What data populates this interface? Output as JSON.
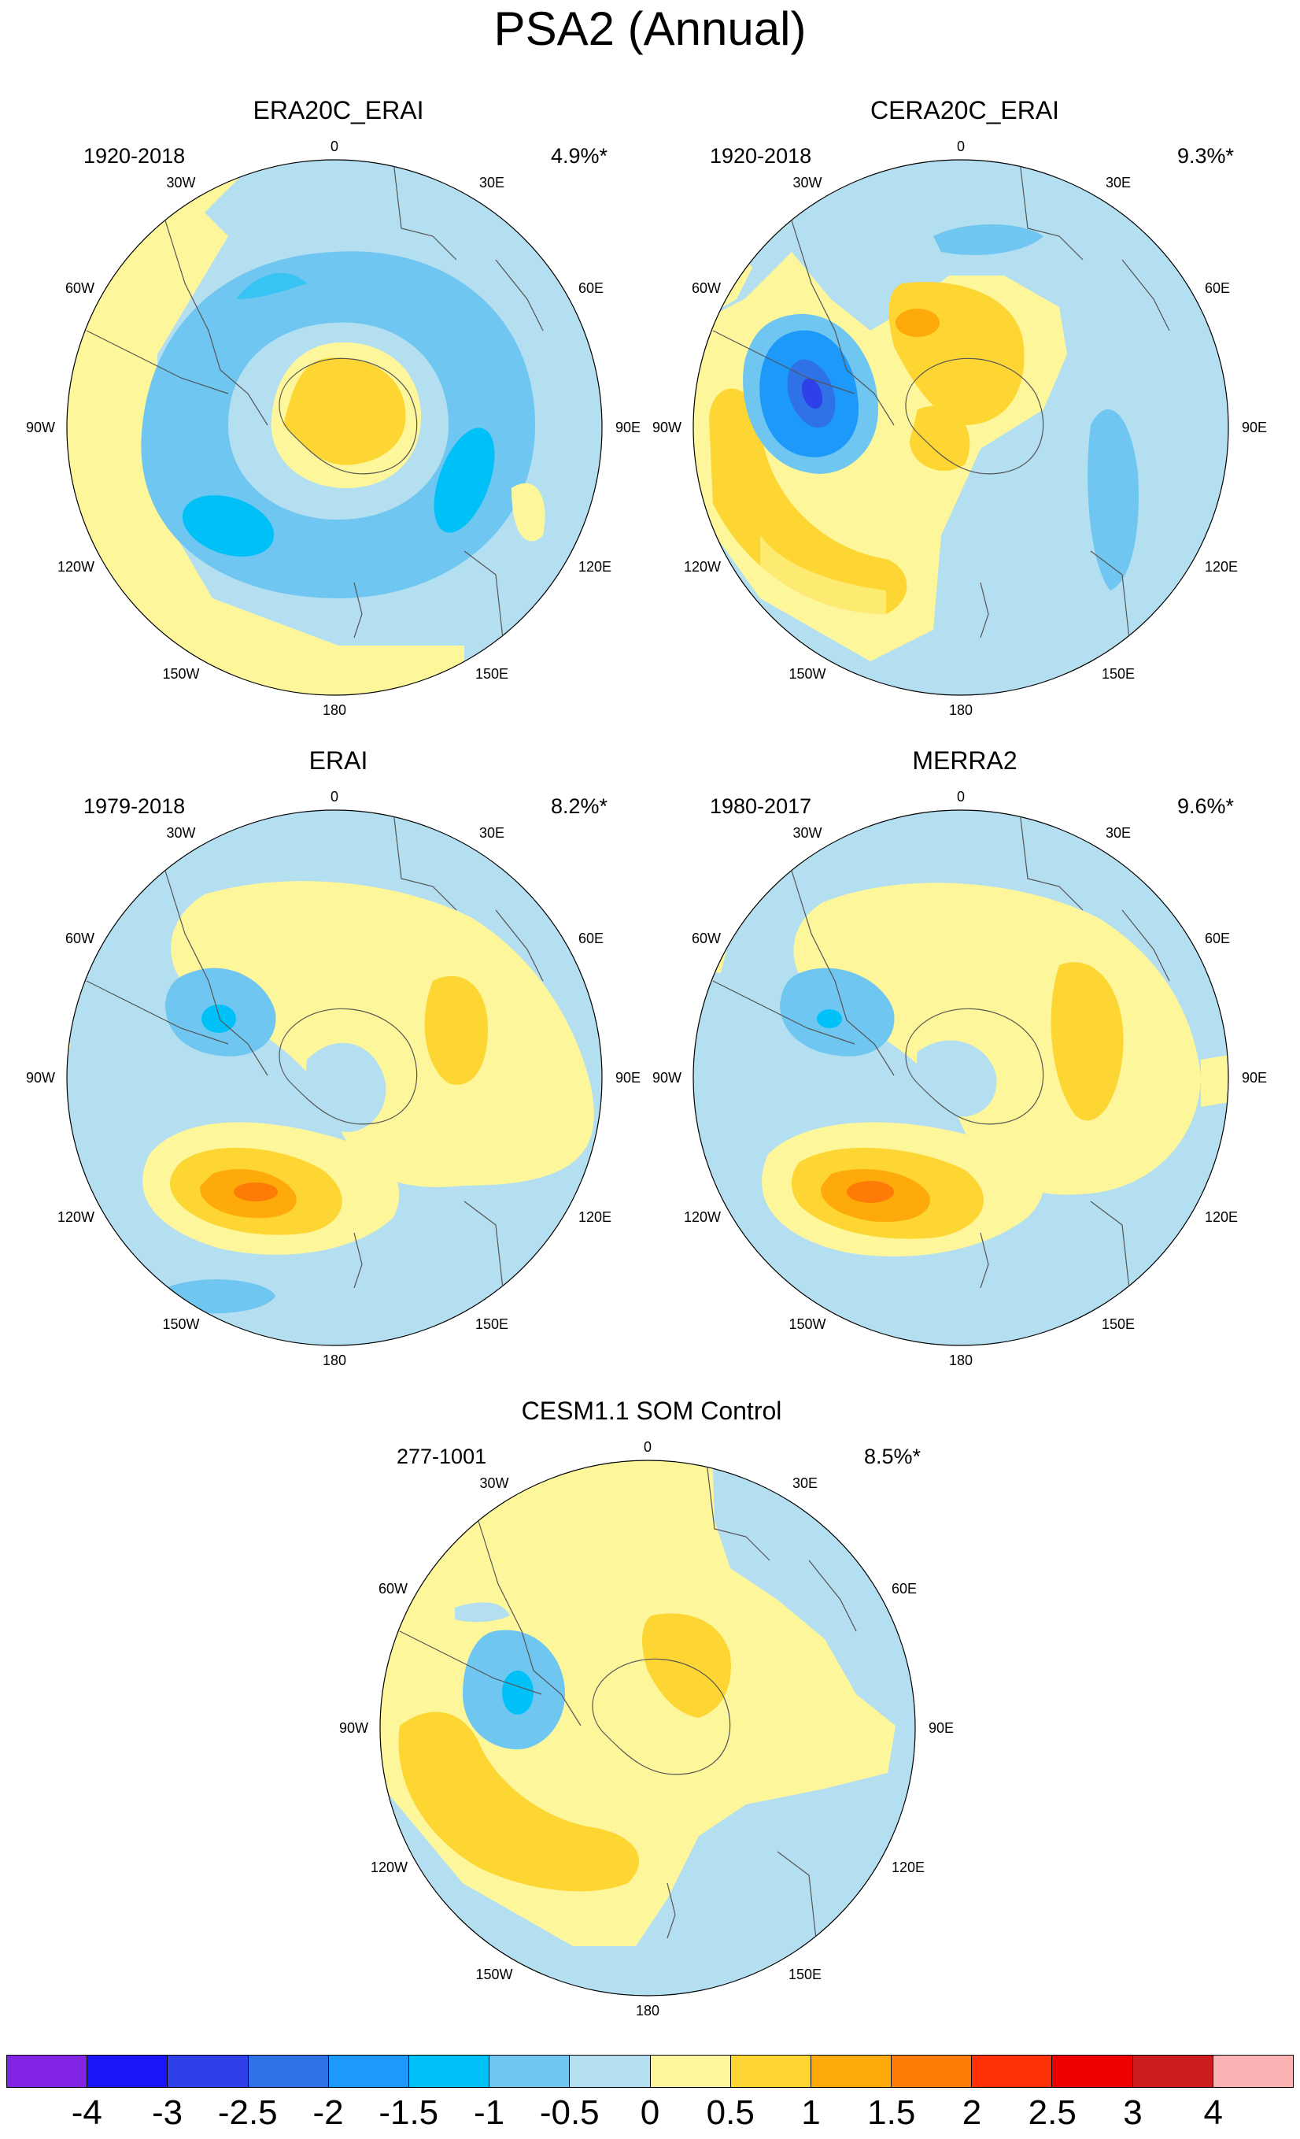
{
  "title": "PSA2 (Annual)",
  "map_labels": {
    "top": "0",
    "bottom": "180",
    "left": "90W",
    "right": "90E",
    "tl_outer": "60W",
    "tl_inner": "30W",
    "tr_inner": "30E",
    "tr_outer": "60E",
    "bl_outer": "120W",
    "bl_inner": "150W",
    "br_inner": "150E",
    "br_outer": "120E"
  },
  "panels": [
    {
      "title": "ERA20C_ERAI",
      "years": "1920-2018",
      "variance": "4.9%*"
    },
    {
      "title": "CERA20C_ERAI",
      "years": "1920-2018",
      "variance": "9.3%*"
    },
    {
      "title": "ERAI",
      "years": "1979-2018",
      "variance": "8.2%*"
    },
    {
      "title": "MERRA2",
      "years": "1980-2017",
      "variance": "9.6%*"
    },
    {
      "title": "CESM1.1 SOM Control",
      "years": "277-1001",
      "variance": "8.5%*"
    }
  ],
  "colorbar": {
    "colors": [
      "#8224e3",
      "#1a16f8",
      "#2e40e8",
      "#2f72e8",
      "#1c99f9",
      "#00c1f7",
      "#6fc6f0",
      "#b4dff1",
      "#fdf69b",
      "#fdd634",
      "#fdaa0a",
      "#fd7b06",
      "#fd3006",
      "#ee0000",
      "#cd1c1c",
      "#fdb3b3"
    ],
    "labels": [
      "-4",
      "-3",
      "-2.5",
      "-2",
      "-1.5",
      "-1",
      "-0.5",
      "0",
      "0.5",
      "1",
      "1.5",
      "2",
      "2.5",
      "3",
      "4"
    ]
  }
}
